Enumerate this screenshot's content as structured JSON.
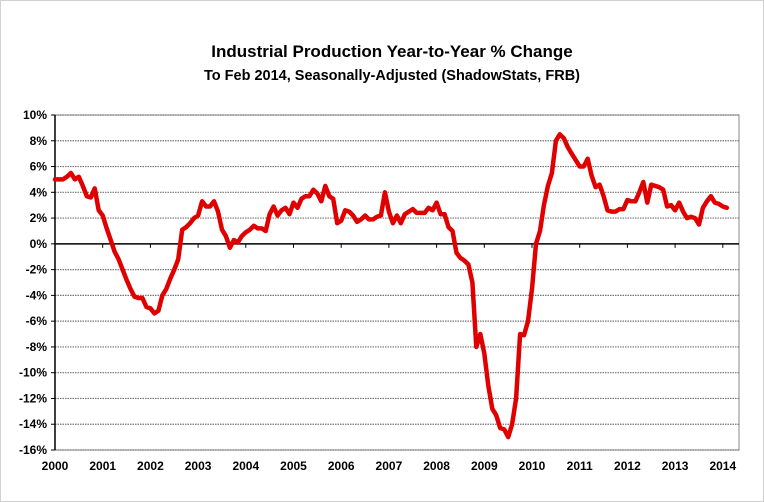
{
  "chart_data": {
    "type": "line",
    "title": "Industrial Production Year-to-Year % Change",
    "subtitle": "To Feb 2014, Seasonally-Adjusted (ShadowStats, FRB)",
    "xlabel": "",
    "ylabel": "",
    "ylim": [
      -16,
      10
    ],
    "xlim": [
      2000,
      2014.33
    ],
    "grid": true,
    "y_ticks": [
      "10%",
      "8%",
      "6%",
      "4%",
      "2%",
      "0%",
      "-2%",
      "-4%",
      "-6%",
      "-8%",
      "-10%",
      "-12%",
      "-14%",
      "-16%"
    ],
    "y_tick_values": [
      10,
      8,
      6,
      4,
      2,
      0,
      -2,
      -4,
      -6,
      -8,
      -10,
      -12,
      -14,
      -16
    ],
    "x_ticks": [
      "2000",
      "2001",
      "2002",
      "2003",
      "2004",
      "2005",
      "2006",
      "2007",
      "2008",
      "2009",
      "2010",
      "2011",
      "2012",
      "2013",
      "2014"
    ],
    "series": [
      {
        "name": "Industrial Production Year-to-Year % Change",
        "color": "#e00000",
        "start": "Jan 2000",
        "frequency": "monthly",
        "values": [
          5.0,
          5.0,
          5.0,
          5.2,
          5.5,
          5.0,
          5.2,
          4.5,
          3.7,
          3.6,
          4.3,
          2.6,
          2.2,
          1.2,
          0.3,
          -0.6,
          -1.2,
          -2.0,
          -2.8,
          -3.5,
          -4.1,
          -4.2,
          -4.2,
          -4.9,
          -5.0,
          -5.4,
          -5.2,
          -4.0,
          -3.5,
          -2.7,
          -2.0,
          -1.2,
          1.1,
          1.3,
          1.6,
          2.0,
          2.2,
          3.3,
          2.9,
          2.9,
          3.3,
          2.5,
          1.1,
          0.6,
          -0.3,
          0.3,
          0.1,
          0.6,
          0.9,
          1.1,
          1.4,
          1.2,
          1.2,
          1.0,
          2.3,
          2.9,
          2.2,
          2.6,
          2.8,
          2.3,
          3.2,
          2.8,
          3.5,
          3.7,
          3.7,
          4.2,
          3.9,
          3.3,
          4.5,
          3.7,
          3.5,
          1.6,
          1.8,
          2.6,
          2.5,
          2.2,
          1.7,
          1.9,
          2.2,
          1.9,
          1.9,
          2.1,
          2.2,
          4.0,
          2.5,
          1.6,
          2.2,
          1.6,
          2.3,
          2.5,
          2.7,
          2.4,
          2.4,
          2.4,
          2.8,
          2.6,
          3.2,
          2.3,
          2.3,
          1.3,
          1.0,
          -0.7,
          -1.1,
          -1.3,
          -1.6,
          -3.0,
          -8.0,
          -7.0,
          -8.5,
          -11.0,
          -12.8,
          -13.3,
          -14.3,
          -14.4,
          -15.0,
          -14.0,
          -12.0,
          -7.0,
          -7.1,
          -6.0,
          -3.5,
          0.0,
          1.0,
          3.0,
          4.5,
          5.5,
          8.0,
          8.5,
          8.2,
          7.5,
          7.0,
          6.5,
          6.0,
          6.0,
          6.6,
          5.3,
          4.4,
          4.6,
          3.7,
          2.6,
          2.5,
          2.5,
          2.7,
          2.7,
          3.4,
          3.3,
          3.3,
          4.0,
          4.8,
          3.2,
          4.6,
          4.5,
          4.4,
          4.2,
          2.9,
          3.0,
          2.6,
          3.2,
          2.5,
          2.0,
          2.1,
          2.0,
          1.5,
          2.8,
          3.3,
          3.7,
          3.2,
          3.1,
          2.9,
          2.8
        ]
      }
    ]
  }
}
